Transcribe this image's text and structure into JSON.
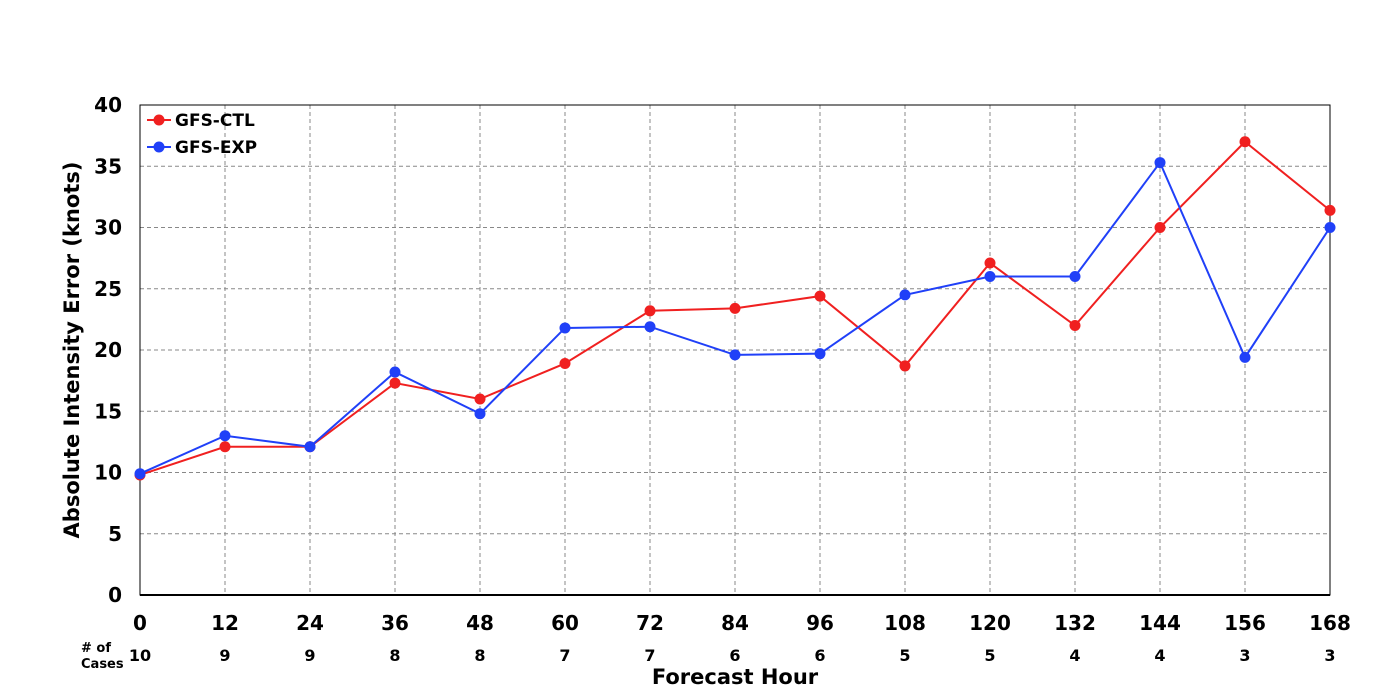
{
  "chart_data": {
    "type": "line",
    "xlabel": "Forecast Hour",
    "ylabel": "Absolute Intensity Error (knots)",
    "x": [
      0,
      12,
      24,
      36,
      48,
      60,
      72,
      84,
      96,
      108,
      120,
      132,
      144,
      156,
      168
    ],
    "x_tick_labels": [
      "0",
      "12",
      "24",
      "36",
      "48",
      "60",
      "72",
      "84",
      "96",
      "108",
      "120",
      "132",
      "144",
      "156",
      "168"
    ],
    "y_tick_labels": [
      "0",
      "5",
      "10",
      "15",
      "20",
      "25",
      "30",
      "35",
      "40"
    ],
    "xlim": [
      0,
      168
    ],
    "ylim": [
      0,
      40
    ],
    "grid": true,
    "legend_position": "top-left",
    "cases_label": "# of Cases",
    "cases_label_lines": [
      "# of",
      "Cases"
    ],
    "cases": [
      "10",
      "9",
      "9",
      "8",
      "8",
      "7",
      "7",
      "6",
      "6",
      "5",
      "5",
      "4",
      "4",
      "3",
      "3"
    ],
    "series": [
      {
        "name": "GFS-CTL",
        "color": "#f02020",
        "values": [
          9.8,
          12.1,
          12.1,
          17.3,
          16.0,
          18.9,
          23.2,
          23.4,
          24.4,
          18.7,
          27.1,
          22.0,
          30.0,
          37.0,
          31.4
        ]
      },
      {
        "name": "GFS-EXP",
        "color": "#2040f8",
        "values": [
          9.9,
          13.0,
          12.1,
          18.2,
          14.8,
          21.8,
          21.9,
          19.6,
          19.7,
          24.5,
          26.0,
          26.0,
          35.3,
          19.4,
          30.0
        ]
      }
    ]
  }
}
